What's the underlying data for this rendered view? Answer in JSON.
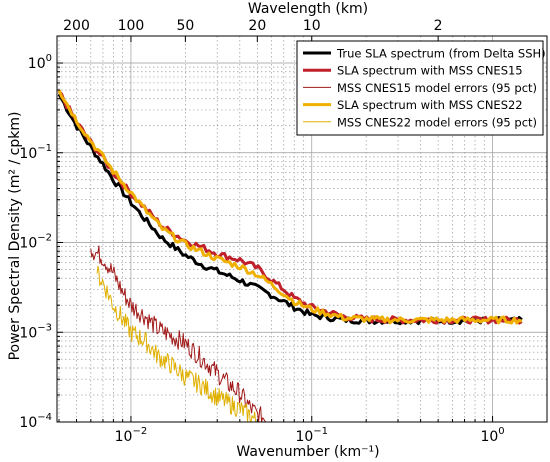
{
  "chart_data": {
    "type": "line",
    "xscale": "log",
    "yscale": "log",
    "xlim": [
      0.0039,
      2.0
    ],
    "ylim": [
      0.0001,
      2.0
    ],
    "grid": true,
    "legend_position": "top-right",
    "xlabel": "Wavenumber (km⁻¹)",
    "ylabel": "Power Spectral Density (m² / cpkm)",
    "top_axis_label": "Wavelength (km)",
    "x_ticks": [
      {
        "value": 0.01,
        "base": "10",
        "exp": "−2"
      },
      {
        "value": 0.1,
        "base": "10",
        "exp": "−1"
      },
      {
        "value": 1,
        "base": "10",
        "exp": "0"
      }
    ],
    "y_ticks": [
      {
        "value": 0.0001,
        "base": "10",
        "exp": "−4"
      },
      {
        "value": 0.001,
        "base": "10",
        "exp": "−3"
      },
      {
        "value": 0.01,
        "base": "10",
        "exp": "−2"
      },
      {
        "value": 0.1,
        "base": "10",
        "exp": "−1"
      },
      {
        "value": 1,
        "base": "10",
        "exp": "0"
      }
    ],
    "top_ticks": [
      {
        "wavelength": 200,
        "label": "200"
      },
      {
        "wavelength": 100,
        "label": "100"
      },
      {
        "wavelength": 50,
        "label": "50"
      },
      {
        "wavelength": 20,
        "label": "20"
      },
      {
        "wavelength": 10,
        "label": "10"
      },
      {
        "wavelength": 2,
        "label": "2"
      }
    ],
    "series": [
      {
        "name": "True SLA spectrum (from Delta SSH)",
        "color": "#000000",
        "width": 3,
        "x": [
          0.004,
          0.005,
          0.006,
          0.007,
          0.008,
          0.01,
          0.012,
          0.015,
          0.02,
          0.025,
          0.03,
          0.04,
          0.05,
          0.06,
          0.07,
          0.08,
          0.1,
          0.15,
          0.2,
          0.3,
          0.5,
          1.0,
          1.5
        ],
        "y": [
          0.45,
          0.2,
          0.115,
          0.075,
          0.05,
          0.028,
          0.018,
          0.011,
          0.0072,
          0.0056,
          0.0048,
          0.0038,
          0.0031,
          0.0026,
          0.0022,
          0.0019,
          0.00155,
          0.00138,
          0.00135,
          0.00135,
          0.00135,
          0.00135,
          0.00135
        ]
      },
      {
        "name": "SLA spectrum with MSS CNES15",
        "color": "#c0202a",
        "width": 3,
        "x": [
          0.004,
          0.005,
          0.006,
          0.007,
          0.008,
          0.01,
          0.012,
          0.015,
          0.02,
          0.025,
          0.03,
          0.04,
          0.05,
          0.06,
          0.07,
          0.08,
          0.1,
          0.15,
          0.2,
          0.3,
          0.5,
          1.0,
          1.5
        ],
        "y": [
          0.48,
          0.22,
          0.13,
          0.088,
          0.06,
          0.035,
          0.024,
          0.015,
          0.0105,
          0.0088,
          0.0075,
          0.0064,
          0.0052,
          0.0038,
          0.003,
          0.0024,
          0.0019,
          0.0015,
          0.0014,
          0.00137,
          0.00137,
          0.00137,
          0.00137
        ]
      },
      {
        "name": "MSS CNES15 model errors (95 pct)",
        "color": "#a01818",
        "width": 1,
        "x": [
          0.006,
          0.007,
          0.008,
          0.009,
          0.01,
          0.012,
          0.014,
          0.017,
          0.02,
          0.025,
          0.03,
          0.035,
          0.04,
          0.045,
          0.05,
          0.055,
          0.06
        ],
        "y": [
          0.0085,
          0.0068,
          0.0045,
          0.0028,
          0.002,
          0.0015,
          0.0011,
          0.0009,
          0.00075,
          0.0005,
          0.00035,
          0.00026,
          0.00021,
          0.00015,
          0.00012,
          0.00011,
          0.0001
        ]
      },
      {
        "name": "SLA spectrum with MSS CNES22",
        "color": "#f0b000",
        "width": 3,
        "x": [
          0.004,
          0.005,
          0.006,
          0.007,
          0.008,
          0.01,
          0.012,
          0.015,
          0.02,
          0.025,
          0.03,
          0.04,
          0.05,
          0.06,
          0.07,
          0.08,
          0.1,
          0.15,
          0.2,
          0.3,
          0.5,
          1.0,
          1.5
        ],
        "y": [
          0.5,
          0.23,
          0.135,
          0.09,
          0.062,
          0.036,
          0.023,
          0.014,
          0.0095,
          0.0078,
          0.0066,
          0.0054,
          0.0044,
          0.0034,
          0.0027,
          0.0022,
          0.0018,
          0.00145,
          0.0014,
          0.00137,
          0.00137,
          0.00137,
          0.00137
        ]
      },
      {
        "name": "MSS CNES22 model errors (95 pct)",
        "color": "#e0b000",
        "width": 1,
        "x": [
          0.0065,
          0.007,
          0.008,
          0.009,
          0.01,
          0.012,
          0.014,
          0.017,
          0.02,
          0.025,
          0.03,
          0.035,
          0.04,
          0.045,
          0.05
        ],
        "y": [
          0.0045,
          0.0036,
          0.002,
          0.0014,
          0.001,
          0.0008,
          0.00055,
          0.00042,
          0.00032,
          0.00025,
          0.00019,
          0.00016,
          0.00014,
          0.00012,
          0.0001
        ]
      }
    ]
  }
}
